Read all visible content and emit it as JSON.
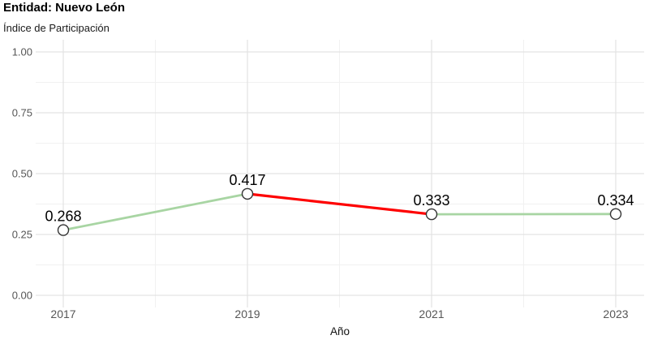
{
  "chart_data": {
    "type": "line",
    "title": "Entidad: Nuevo León",
    "subtitle": "Índice de Participación",
    "xlabel": "Año",
    "ylabel": "",
    "x": [
      2017,
      2019,
      2021,
      2023
    ],
    "x_tick_labels": [
      "2017",
      "2019",
      "2021",
      "2023"
    ],
    "ylim": [
      0,
      1
    ],
    "y_ticks": [
      0,
      0.25,
      0.5,
      0.75,
      1
    ],
    "y_tick_labels": [
      "0.00",
      "0.25",
      "0.50",
      "0.75",
      "1.00"
    ],
    "series": [
      {
        "name": "Índice de Participación",
        "values": [
          0.268,
          0.417,
          0.333,
          0.334
        ]
      }
    ],
    "point_labels": [
      "0.268",
      "0.417",
      "0.333",
      "0.334"
    ],
    "segment_colors": [
      "#a8d5a3",
      "#fe0000",
      "#a8d5a3"
    ],
    "segment_trends": [
      "increase",
      "decrease",
      "increase"
    ],
    "legend": "none",
    "grid": "major and minor gridlines, light gray on white panel",
    "colors": {
      "increase_segment": "#a8d5a3",
      "decrease_segment": "#fe0000",
      "point_fill": "#ffffff",
      "point_stroke": "#333333",
      "grid_major": "#e3e3e3",
      "grid_minor": "#f1f1f1",
      "axis_text": "#565656",
      "axis_title_text": "#111111",
      "label_text": "#000000"
    }
  }
}
